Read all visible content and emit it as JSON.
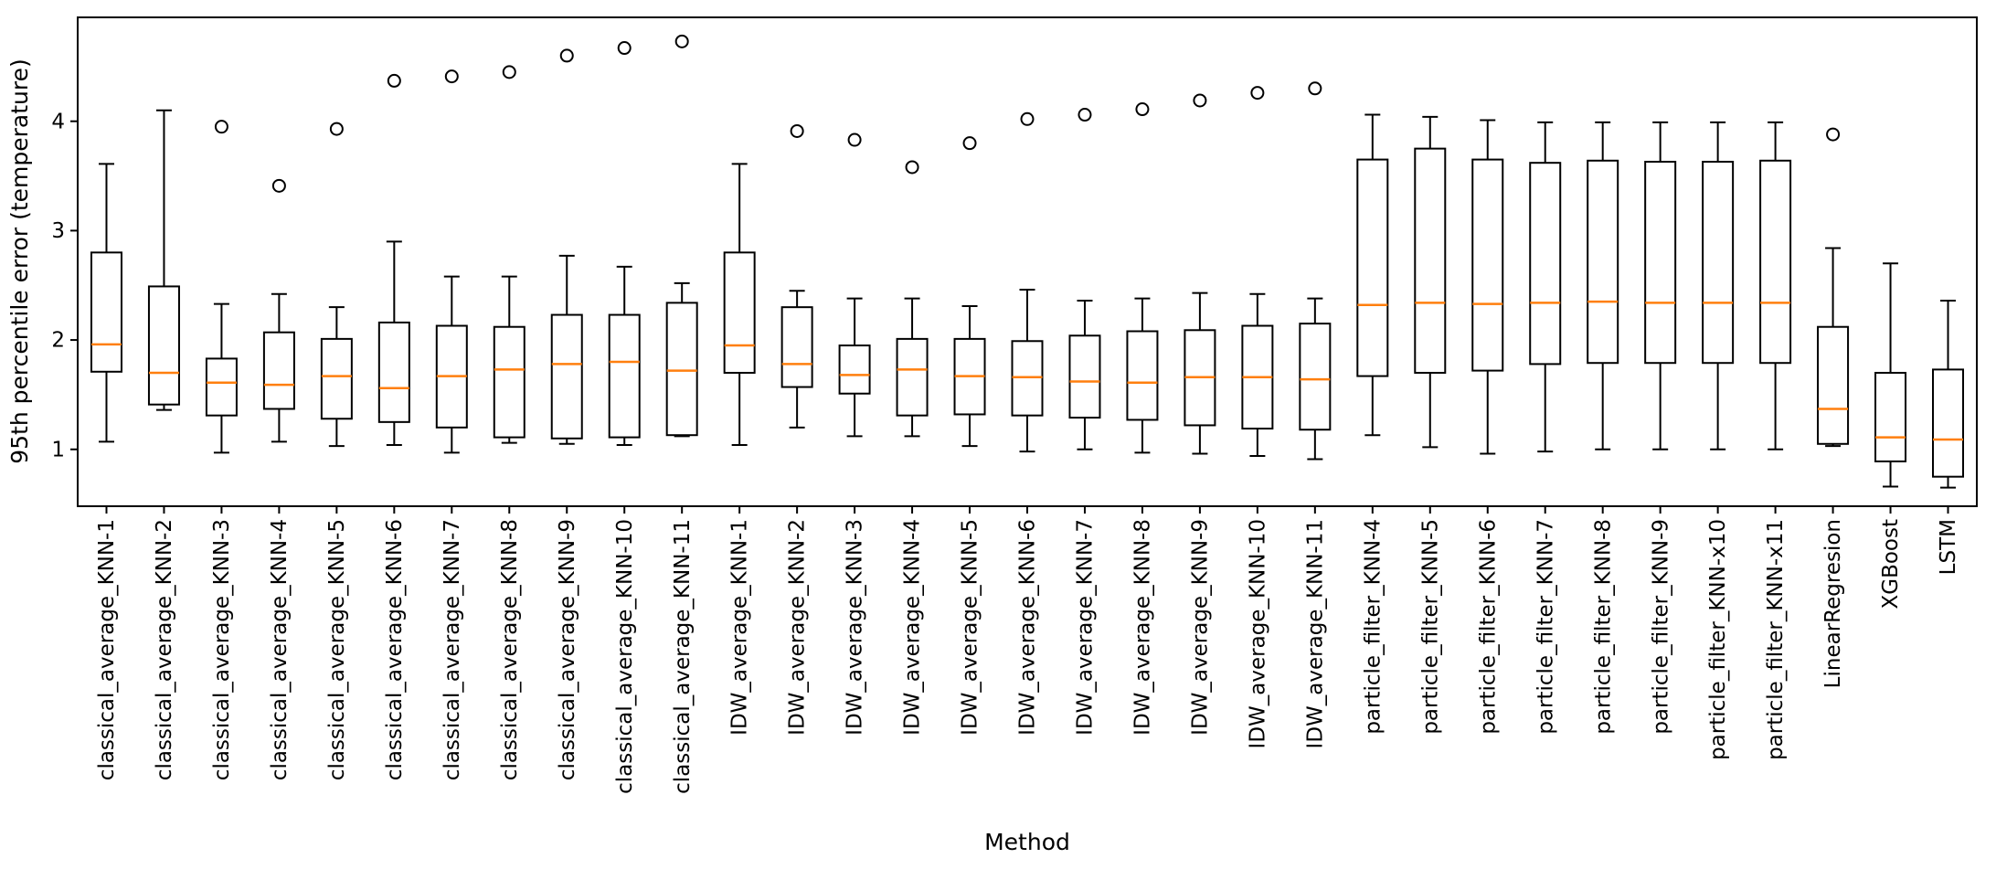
{
  "chart_data": {
    "type": "boxplot",
    "title": "",
    "xlabel": "Method",
    "ylabel": "95th percentile error (temperature)",
    "ylim": [
      0.48,
      4.95
    ],
    "yticks": [
      1,
      2,
      3,
      4
    ],
    "grid": false,
    "legend": "none",
    "colors": {
      "box_line": "#000000",
      "median_line": "#ff7f0e",
      "flier_outline": "#000000",
      "axis": "#000000",
      "background": "#ffffff"
    },
    "categories": [
      "classical_average_KNN-1",
      "classical_average_KNN-2",
      "classical_average_KNN-3",
      "classical_average_KNN-4",
      "classical_average_KNN-5",
      "classical_average_KNN-6",
      "classical_average_KNN-7",
      "classical_average_KNN-8",
      "classical_average_KNN-9",
      "classical_average_KNN-10",
      "classical_average_KNN-11",
      "IDW_average_KNN-1",
      "IDW_average_KNN-2",
      "IDW_average_KNN-3",
      "IDW_average_KNN-4",
      "IDW_average_KNN-5",
      "IDW_average_KNN-6",
      "IDW_average_KNN-7",
      "IDW_average_KNN-8",
      "IDW_average_KNN-9",
      "IDW_average_KNN-10",
      "IDW_average_KNN-11",
      "particle_filter_KNN-4",
      "particle_filter_KNN-5",
      "particle_filter_KNN-6",
      "particle_filter_KNN-7",
      "particle_filter_KNN-8",
      "particle_filter_KNN-9",
      "particle_filter_KNN-x10",
      "particle_filter_KNN-x11",
      "LinearRegresion",
      "XGBoost",
      "LSTM"
    ],
    "boxes": [
      {
        "label": "classical_average_KNN-1",
        "whisker_low": 1.07,
        "q1": 1.71,
        "median": 1.96,
        "q3": 2.8,
        "whisker_high": 3.61,
        "fliers": []
      },
      {
        "label": "classical_average_KNN-2",
        "whisker_low": 1.36,
        "q1": 1.41,
        "median": 1.7,
        "q3": 2.49,
        "whisker_high": 4.1,
        "fliers": []
      },
      {
        "label": "classical_average_KNN-3",
        "whisker_low": 0.97,
        "q1": 1.31,
        "median": 1.61,
        "q3": 1.83,
        "whisker_high": 2.33,
        "fliers": [
          3.95
        ]
      },
      {
        "label": "classical_average_KNN-4",
        "whisker_low": 1.07,
        "q1": 1.37,
        "median": 1.59,
        "q3": 2.07,
        "whisker_high": 2.42,
        "fliers": [
          3.41
        ]
      },
      {
        "label": "classical_average_KNN-5",
        "whisker_low": 1.03,
        "q1": 1.28,
        "median": 1.67,
        "q3": 2.01,
        "whisker_high": 2.3,
        "fliers": [
          3.93
        ]
      },
      {
        "label": "classical_average_KNN-6",
        "whisker_low": 1.04,
        "q1": 1.25,
        "median": 1.56,
        "q3": 2.16,
        "whisker_high": 2.9,
        "fliers": [
          4.37
        ]
      },
      {
        "label": "classical_average_KNN-7",
        "whisker_low": 0.97,
        "q1": 1.2,
        "median": 1.67,
        "q3": 2.13,
        "whisker_high": 2.58,
        "fliers": [
          4.41
        ]
      },
      {
        "label": "classical_average_KNN-8",
        "whisker_low": 1.06,
        "q1": 1.11,
        "median": 1.73,
        "q3": 2.12,
        "whisker_high": 2.58,
        "fliers": [
          4.45
        ]
      },
      {
        "label": "classical_average_KNN-9",
        "whisker_low": 1.05,
        "q1": 1.1,
        "median": 1.78,
        "q3": 2.23,
        "whisker_high": 2.77,
        "fliers": [
          4.6
        ]
      },
      {
        "label": "classical_average_KNN-10",
        "whisker_low": 1.04,
        "q1": 1.11,
        "median": 1.8,
        "q3": 2.23,
        "whisker_high": 2.67,
        "fliers": [
          4.67
        ]
      },
      {
        "label": "classical_average_KNN-11",
        "whisker_low": 1.12,
        "q1": 1.13,
        "median": 1.72,
        "q3": 2.34,
        "whisker_high": 2.52,
        "fliers": [
          4.73
        ]
      },
      {
        "label": "IDW_average_KNN-1",
        "whisker_low": 1.04,
        "q1": 1.7,
        "median": 1.95,
        "q3": 2.8,
        "whisker_high": 3.61,
        "fliers": []
      },
      {
        "label": "IDW_average_KNN-2",
        "whisker_low": 1.2,
        "q1": 1.57,
        "median": 1.78,
        "q3": 2.3,
        "whisker_high": 2.45,
        "fliers": [
          3.91
        ]
      },
      {
        "label": "IDW_average_KNN-3",
        "whisker_low": 1.12,
        "q1": 1.51,
        "median": 1.68,
        "q3": 1.95,
        "whisker_high": 2.38,
        "fliers": [
          3.83
        ]
      },
      {
        "label": "IDW_average_KNN-4",
        "whisker_low": 1.12,
        "q1": 1.31,
        "median": 1.73,
        "q3": 2.01,
        "whisker_high": 2.38,
        "fliers": [
          3.58
        ]
      },
      {
        "label": "IDW_average_KNN-5",
        "whisker_low": 1.03,
        "q1": 1.32,
        "median": 1.67,
        "q3": 2.01,
        "whisker_high": 2.31,
        "fliers": [
          3.8
        ]
      },
      {
        "label": "IDW_average_KNN-6",
        "whisker_low": 0.98,
        "q1": 1.31,
        "median": 1.66,
        "q3": 1.99,
        "whisker_high": 2.46,
        "fliers": [
          4.02
        ]
      },
      {
        "label": "IDW_average_KNN-7",
        "whisker_low": 1.0,
        "q1": 1.29,
        "median": 1.62,
        "q3": 2.04,
        "whisker_high": 2.36,
        "fliers": [
          4.06
        ]
      },
      {
        "label": "IDW_average_KNN-8",
        "whisker_low": 0.97,
        "q1": 1.27,
        "median": 1.61,
        "q3": 2.08,
        "whisker_high": 2.38,
        "fliers": [
          4.11
        ]
      },
      {
        "label": "IDW_average_KNN-9",
        "whisker_low": 0.96,
        "q1": 1.22,
        "median": 1.66,
        "q3": 2.09,
        "whisker_high": 2.43,
        "fliers": [
          4.19
        ]
      },
      {
        "label": "IDW_average_KNN-10",
        "whisker_low": 0.94,
        "q1": 1.19,
        "median": 1.66,
        "q3": 2.13,
        "whisker_high": 2.42,
        "fliers": [
          4.26
        ]
      },
      {
        "label": "IDW_average_KNN-11",
        "whisker_low": 0.91,
        "q1": 1.18,
        "median": 1.64,
        "q3": 2.15,
        "whisker_high": 2.38,
        "fliers": [
          4.3
        ]
      },
      {
        "label": "particle_filter_KNN-4",
        "whisker_low": 1.13,
        "q1": 1.67,
        "median": 2.32,
        "q3": 3.65,
        "whisker_high": 4.06,
        "fliers": []
      },
      {
        "label": "particle_filter_KNN-5",
        "whisker_low": 1.02,
        "q1": 1.7,
        "median": 2.34,
        "q3": 3.75,
        "whisker_high": 4.04,
        "fliers": []
      },
      {
        "label": "particle_filter_KNN-6",
        "whisker_low": 0.96,
        "q1": 1.72,
        "median": 2.33,
        "q3": 3.65,
        "whisker_high": 4.01,
        "fliers": []
      },
      {
        "label": "particle_filter_KNN-7",
        "whisker_low": 0.98,
        "q1": 1.78,
        "median": 2.34,
        "q3": 3.62,
        "whisker_high": 3.99,
        "fliers": []
      },
      {
        "label": "particle_filter_KNN-8",
        "whisker_low": 1.0,
        "q1": 1.79,
        "median": 2.35,
        "q3": 3.64,
        "whisker_high": 3.99,
        "fliers": []
      },
      {
        "label": "particle_filter_KNN-9",
        "whisker_low": 1.0,
        "q1": 1.79,
        "median": 2.34,
        "q3": 3.63,
        "whisker_high": 3.99,
        "fliers": []
      },
      {
        "label": "particle_filter_KNN-x10",
        "whisker_low": 1.0,
        "q1": 1.79,
        "median": 2.34,
        "q3": 3.63,
        "whisker_high": 3.99,
        "fliers": []
      },
      {
        "label": "particle_filter_KNN-x11",
        "whisker_low": 1.0,
        "q1": 1.79,
        "median": 2.34,
        "q3": 3.64,
        "whisker_high": 3.99,
        "fliers": []
      },
      {
        "label": "LinearRegresion",
        "whisker_low": 1.03,
        "q1": 1.05,
        "median": 1.37,
        "q3": 2.12,
        "whisker_high": 2.84,
        "fliers": [
          3.88
        ]
      },
      {
        "label": "XGBoost",
        "whisker_low": 0.66,
        "q1": 0.89,
        "median": 1.11,
        "q3": 1.7,
        "whisker_high": 2.7,
        "fliers": []
      },
      {
        "label": "LSTM",
        "whisker_low": 0.65,
        "q1": 0.75,
        "median": 1.09,
        "q3": 1.73,
        "whisker_high": 2.36,
        "fliers": []
      }
    ]
  }
}
